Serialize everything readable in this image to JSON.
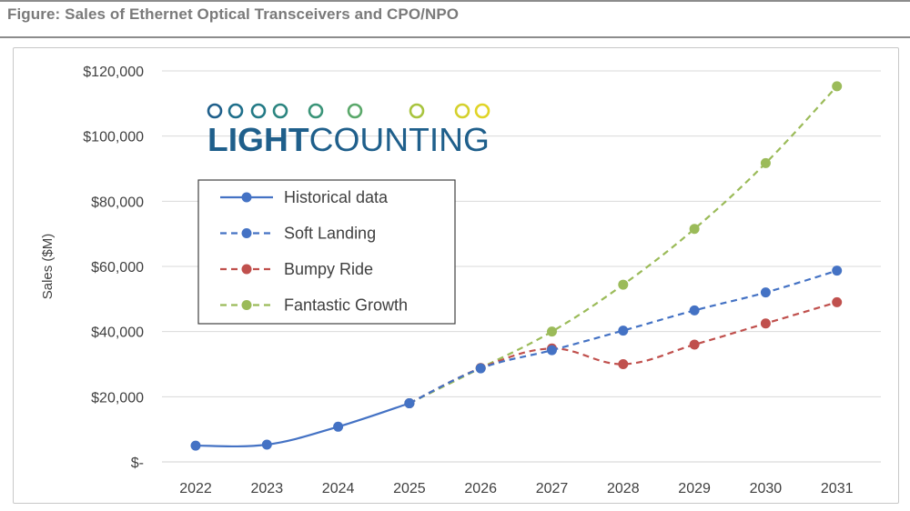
{
  "figure_title": "Figure: Sales of Ethernet Optical Transceivers and CPO/NPO",
  "logo_text": {
    "part1": "LIGHT",
    "part2": "COUNTING"
  },
  "colors": {
    "historical": "#4472c4",
    "soft_landing": "#4472c4",
    "bumpy_ride": "#c0504d",
    "fantastic_growth": "#9bbb59",
    "grid": "#d9d9d9",
    "axis_text": "#404040",
    "logo_text": "#1f5f8b"
  },
  "chart_data": {
    "type": "line",
    "title": "",
    "xlabel": "",
    "ylabel": "Sales ($M)",
    "x": [
      "2022",
      "2023",
      "2024",
      "2025",
      "2026",
      "2027",
      "2028",
      "2029",
      "2030",
      "2031"
    ],
    "ylim": [
      0,
      120000
    ],
    "yticks": [
      0,
      20000,
      40000,
      60000,
      80000,
      100000,
      120000
    ],
    "ytick_labels": [
      "$-",
      "$20,000",
      "$40,000",
      "$60,000",
      "$80,000",
      "$100,000",
      "$120,000"
    ],
    "grid": true,
    "legend_position": "upper-left",
    "series": [
      {
        "name": "Historical data",
        "style": "solid",
        "color": "#4472c4",
        "x": [
          "2022",
          "2023",
          "2024",
          "2025"
        ],
        "values": [
          5000,
          5300,
          10800,
          18000
        ]
      },
      {
        "name": "Soft Landing",
        "style": "dashed",
        "color": "#4472c4",
        "x": [
          "2025",
          "2026",
          "2027",
          "2028",
          "2029",
          "2030",
          "2031"
        ],
        "values": [
          18000,
          28700,
          34300,
          40300,
          46500,
          52000,
          58700
        ]
      },
      {
        "name": "Bumpy Ride",
        "style": "dashed",
        "color": "#c0504d",
        "x": [
          "2025",
          "2026",
          "2027",
          "2028",
          "2029",
          "2030",
          "2031"
        ],
        "values": [
          18000,
          28800,
          34800,
          30000,
          36000,
          42500,
          49000
        ]
      },
      {
        "name": "Fantastic Growth",
        "style": "dashed",
        "color": "#9bbb59",
        "x": [
          "2025",
          "2026",
          "2027",
          "2028",
          "2029",
          "2030",
          "2031"
        ],
        "values": [
          18000,
          28800,
          40000,
          54400,
          71500,
          91700,
          115300
        ]
      }
    ]
  }
}
